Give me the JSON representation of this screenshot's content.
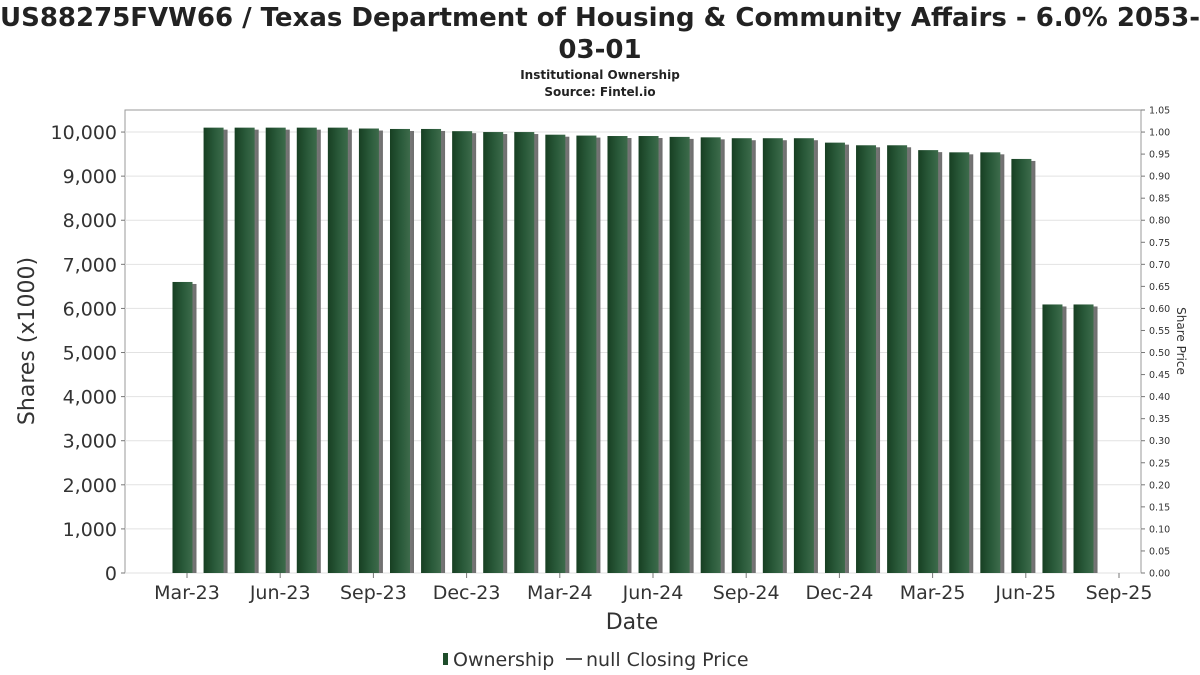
{
  "chart_data": {
    "type": "bar",
    "title": "US88275FVW66 / Texas Department of Housing & Community Affairs - 6.0% 2053-03-01",
    "subtitles": [
      "Institutional Ownership",
      "Source: Fintel.io"
    ],
    "xlabel": "Date",
    "ylabel": "Shares (x1000)",
    "y2label": "Share Price",
    "ylim": [
      0,
      10500
    ],
    "y2lim": [
      0,
      1.05
    ],
    "yticks": [
      "0",
      "1,000",
      "2,000",
      "3,000",
      "4,000",
      "5,000",
      "6,000",
      "7,000",
      "8,000",
      "9,000",
      "10,000"
    ],
    "ytick_values": [
      0,
      1000,
      2000,
      3000,
      4000,
      5000,
      6000,
      7000,
      8000,
      9000,
      10000
    ],
    "y2ticks": [
      "0.00",
      "0.05",
      "0.10",
      "0.15",
      "0.20",
      "0.25",
      "0.30",
      "0.35",
      "0.40",
      "0.45",
      "0.50",
      "0.55",
      "0.60",
      "0.65",
      "0.70",
      "0.75",
      "0.80",
      "0.85",
      "0.90",
      "0.95",
      "1.00",
      "1.05"
    ],
    "xticks": [
      "Mar-23",
      "Jun-23",
      "Sep-23",
      "Dec-23",
      "Mar-24",
      "Jun-24",
      "Sep-24",
      "Dec-24",
      "Mar-25",
      "Jun-25",
      "Sep-25"
    ],
    "grid": true,
    "legend_position": "bottom",
    "legend": [
      {
        "label": "Ownership",
        "marker": "bar",
        "color": "#1e4d2b"
      },
      {
        "label": "null Closing Price",
        "marker": "line",
        "color": "#555555"
      }
    ],
    "series": [
      {
        "name": "Ownership",
        "values": [
          6600,
          10100,
          10100,
          10100,
          10100,
          10100,
          10080,
          10070,
          10070,
          10020,
          10000,
          10000,
          9940,
          9920,
          9910,
          9910,
          9890,
          9880,
          9860,
          9860,
          9860,
          9760,
          9700,
          9700,
          9590,
          9540,
          9540,
          9390,
          6090,
          6090
        ]
      }
    ],
    "colors": {
      "bar": "#1e4d2b",
      "bar_shadow": "#8a8a8a",
      "grid": "#e2e2e2"
    }
  }
}
